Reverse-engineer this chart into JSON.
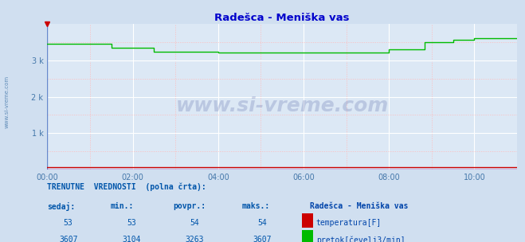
{
  "title": "Radešca - Meniška vas",
  "bg_color": "#d0dff0",
  "plot_bg_color": "#dce8f5",
  "title_color": "#0000cc",
  "axis_color": "#5588bb",
  "grid_color_major": "#ffffff",
  "grid_color_minor": "#ffbbbb",
  "xlabel_color": "#4477aa",
  "ylabel_color": "#4477aa",
  "xmin": 0,
  "xmax": 132,
  "ymin": 0,
  "ymax": 4000,
  "yticks": [
    1000,
    2000,
    3000
  ],
  "ytick_labels": [
    "1 k",
    "2 k",
    "3 k"
  ],
  "xticks": [
    0,
    24,
    48,
    72,
    96,
    120
  ],
  "xtick_labels": [
    "00:00",
    "02:00",
    "04:00",
    "06:00",
    "08:00",
    "10:00"
  ],
  "watermark": "www.si-vreme.com",
  "watermark_color": "#223388",
  "watermark_alpha": 0.18,
  "sidebar_text": "www.si-vreme.com",
  "sidebar_color": "#4477aa",
  "flow_color": "#00bb00",
  "temp_color": "#cc0000",
  "flow_data_x": [
    0,
    18,
    18,
    30,
    30,
    48,
    48,
    96,
    96,
    106,
    106,
    114,
    114,
    120,
    120,
    132
  ],
  "flow_data_y": [
    3450,
    3450,
    3350,
    3350,
    3250,
    3250,
    3220,
    3220,
    3310,
    3310,
    3500,
    3500,
    3560,
    3560,
    3607,
    3607
  ],
  "temp_data_x": [
    0,
    132
  ],
  "temp_data_y": [
    53,
    53
  ],
  "footer_text1": "TRENUTNE  VREDNOSTI  (polna črta):",
  "footer_col_headers": [
    "sedaj:",
    "min.:",
    "povpr.:",
    "maks.:"
  ],
  "footer_col5": "Radešca - Meniška vas",
  "temp_row": [
    "53",
    "53",
    "54",
    "54"
  ],
  "flow_row": [
    "3607",
    "3104",
    "3263",
    "3607"
  ],
  "legend_temp": "temperatura[F]",
  "legend_flow": "pretok[čevelj3/min]",
  "footer_color": "#0055aa",
  "border_color": "#8899bb",
  "arrow_color": "#cc0000"
}
